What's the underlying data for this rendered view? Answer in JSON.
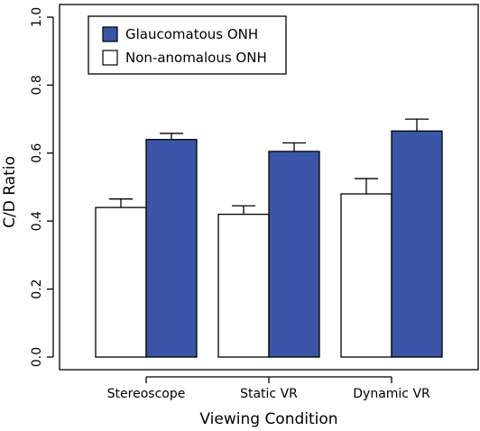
{
  "chart_data": {
    "type": "bar",
    "xlabel": "Viewing Condition",
    "ylabel": "C/D Ratio",
    "ylim": [
      0,
      1.0
    ],
    "yticks": [
      "0.0",
      "0.2",
      "0.4",
      "0.6",
      "0.8",
      "1.0"
    ],
    "categories": [
      "Stereoscope",
      "Static VR",
      "Dynamic VR"
    ],
    "series": [
      {
        "name": "Non-anomalous ONH",
        "color": "#ffffff",
        "values": [
          0.44,
          0.42,
          0.48
        ],
        "error_upper": [
          0.465,
          0.445,
          0.525
        ]
      },
      {
        "name": "Glaucomatous ONH",
        "color": "#3a55a5",
        "values": [
          0.64,
          0.605,
          0.665
        ],
        "error_upper": [
          0.658,
          0.63,
          0.7
        ]
      }
    ],
    "legend_order": [
      "Glaucomatous ONH",
      "Non-anomalous ONH"
    ],
    "legend_position": "top-left",
    "grid": false
  }
}
